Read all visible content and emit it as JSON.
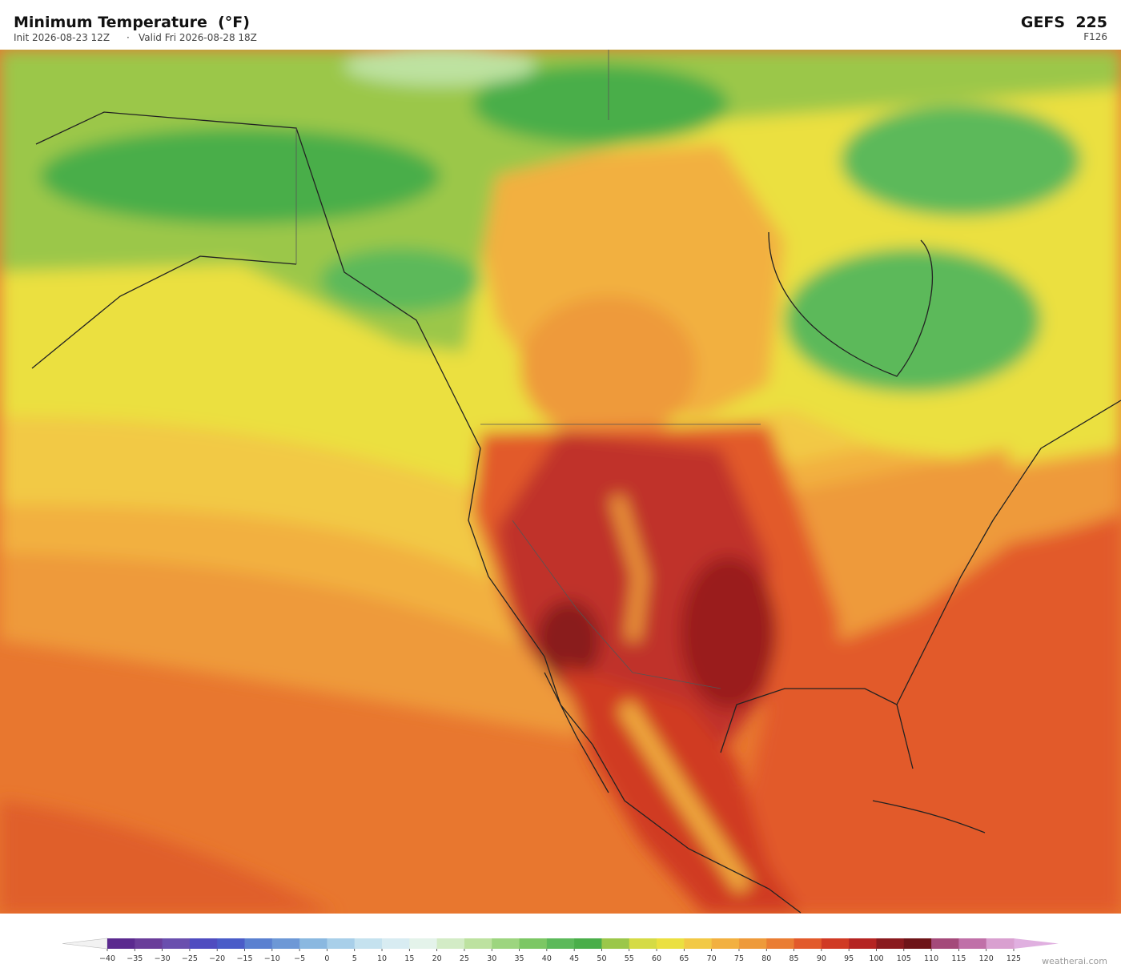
{
  "header": {
    "title": "Minimum Temperature  (°F)",
    "init": "Init 2026-08-23 12Z",
    "separator": "·",
    "valid": "Valid Fri 2026-08-28 18Z",
    "model": "GEFS  225",
    "forecast_hour": "F126"
  },
  "colorbar": {
    "ticks": [
      {
        "value": -40,
        "label": "−40"
      },
      {
        "value": -35,
        "label": "−35"
      },
      {
        "value": -30,
        "label": "−30"
      },
      {
        "value": -25,
        "label": "−25"
      },
      {
        "value": -20,
        "label": "−20"
      },
      {
        "value": -15,
        "label": "−15"
      },
      {
        "value": -10,
        "label": "−10"
      },
      {
        "value": -5,
        "label": "−5"
      },
      0,
      5,
      10,
      15,
      20,
      25,
      30,
      35,
      40,
      45,
      50,
      55,
      60,
      65,
      70,
      75,
      80,
      85,
      90,
      95,
      100,
      105,
      110,
      115,
      120,
      125
    ],
    "colors": [
      "#5b2a8f",
      "#6a3d9a",
      "#6a4fae",
      "#4f4cc0",
      "#4a5cc8",
      "#5a80d0",
      "#6d98d6",
      "#8ab8e0",
      "#a8cfe9",
      "#c5e2ef",
      "#d8ecf2",
      "#e4f3ea",
      "#d3ecc6",
      "#bde2a0",
      "#9dd57f",
      "#7cc764",
      "#5cb95a",
      "#4aae4a",
      "#9bc74a",
      "#d5db45",
      "#ebe040",
      "#f2c945",
      "#f2b040",
      "#ee9a3a",
      "#ea7d33",
      "#e25a2b",
      "#d03a24",
      "#b52422",
      "#8a1a1e",
      "#6e1418",
      "#a44a7a",
      "#c070a8",
      "#d9a0d0"
    ],
    "under_color": "#f2f2f2",
    "over_color": "#e0b0e0"
  },
  "footer": {
    "credit": "weatherai.com"
  }
}
